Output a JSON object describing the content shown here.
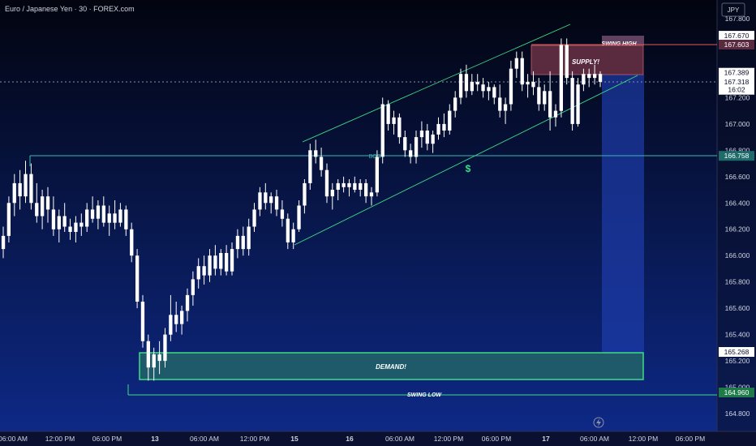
{
  "header": {
    "symbol_title": "Euro / Japanese Yen · 30 · FOREX.com",
    "currency_label": "JPY"
  },
  "footer": {
    "lightning_icon": "lightning-icon"
  },
  "chart_data": {
    "type": "candlestick",
    "title": "Euro / Japanese Yen · 30 · FOREX.com",
    "currency": "JPY",
    "ylim": [
      164.72,
      167.86
    ],
    "y_ticks": [
      164.8,
      165.0,
      165.2,
      165.4,
      165.6,
      165.8,
      166.0,
      166.2,
      166.4,
      166.6,
      166.8,
      167.0,
      167.2,
      167.4,
      167.6,
      167.8
    ],
    "x_tick_labels": [
      "06:00 AM",
      "12:00 PM",
      "06:00 PM",
      "13",
      "06:00 AM",
      "12:00 PM",
      "15",
      "16",
      "06:00 AM",
      "12:00 PM",
      "06:00 PM",
      "17",
      "06:00 AM",
      "12:00 PM",
      "06:00 PM"
    ],
    "price_labels": [
      {
        "value": "167.670",
        "price": 167.67,
        "style": "plain"
      },
      {
        "value": "167.603",
        "price": 167.603,
        "style": "swing-high"
      },
      {
        "value": "167.389",
        "price": 167.389,
        "style": "plain"
      },
      {
        "value": "167.318",
        "price": 167.318,
        "style": "current"
      },
      {
        "value": "16:02",
        "price": 167.26,
        "style": "plain"
      },
      {
        "value": "166.758",
        "price": 166.758,
        "style": "bos"
      },
      {
        "value": "165.268",
        "price": 165.268,
        "style": "plain"
      },
      {
        "value": "164.960",
        "price": 164.96,
        "style": "swing-low"
      }
    ],
    "candles_ohlc": [
      [
        166.05,
        166.22,
        165.98,
        166.15
      ],
      [
        166.15,
        166.45,
        166.1,
        166.4
      ],
      [
        166.4,
        166.62,
        166.3,
        166.55
      ],
      [
        166.55,
        166.65,
        166.35,
        166.45
      ],
      [
        166.45,
        166.72,
        166.4,
        166.62
      ],
      [
        166.62,
        166.7,
        166.35,
        166.4
      ],
      [
        166.4,
        166.55,
        166.25,
        166.3
      ],
      [
        166.3,
        166.5,
        166.2,
        166.45
      ],
      [
        166.45,
        166.52,
        166.25,
        166.35
      ],
      [
        166.35,
        166.45,
        166.15,
        166.2
      ],
      [
        166.2,
        166.35,
        166.1,
        166.3
      ],
      [
        166.3,
        166.4,
        166.18,
        166.22
      ],
      [
        166.22,
        166.28,
        166.12,
        166.18
      ],
      [
        166.18,
        166.3,
        166.1,
        166.25
      ],
      [
        166.25,
        166.32,
        166.15,
        166.22
      ],
      [
        166.22,
        166.4,
        166.18,
        166.35
      ],
      [
        166.35,
        166.45,
        166.25,
        166.28
      ],
      [
        166.28,
        166.42,
        166.2,
        166.38
      ],
      [
        166.38,
        166.45,
        166.22,
        166.25
      ],
      [
        166.25,
        166.38,
        166.15,
        166.32
      ],
      [
        166.32,
        166.42,
        166.2,
        166.25
      ],
      [
        166.25,
        166.4,
        166.22,
        166.35
      ],
      [
        166.35,
        166.38,
        166.15,
        166.2
      ],
      [
        166.2,
        166.25,
        165.95,
        166.0
      ],
      [
        166.0,
        166.05,
        165.6,
        165.65
      ],
      [
        165.65,
        165.7,
        165.3,
        165.35
      ],
      [
        165.35,
        165.4,
        165.05,
        165.15
      ],
      [
        165.15,
        165.3,
        165.05,
        165.25
      ],
      [
        165.25,
        165.35,
        165.1,
        165.2
      ],
      [
        165.2,
        165.45,
        165.15,
        165.4
      ],
      [
        165.4,
        165.7,
        165.35,
        165.55
      ],
      [
        165.55,
        165.65,
        165.42,
        165.48
      ],
      [
        165.48,
        165.62,
        165.4,
        165.58
      ],
      [
        165.58,
        165.75,
        165.5,
        165.7
      ],
      [
        165.7,
        165.88,
        165.62,
        165.82
      ],
      [
        165.82,
        165.98,
        165.75,
        165.92
      ],
      [
        165.92,
        166.0,
        165.78,
        165.85
      ],
      [
        165.85,
        166.05,
        165.8,
        166.0
      ],
      [
        166.0,
        166.08,
        165.85,
        165.9
      ],
      [
        165.9,
        166.05,
        165.85,
        166.02
      ],
      [
        166.02,
        166.08,
        165.85,
        165.88
      ],
      [
        165.88,
        166.1,
        165.85,
        166.05
      ],
      [
        166.05,
        166.2,
        165.98,
        166.15
      ],
      [
        166.15,
        166.22,
        166.0,
        166.05
      ],
      [
        166.05,
        166.28,
        166.0,
        166.22
      ],
      [
        166.22,
        166.4,
        166.18,
        166.35
      ],
      [
        166.35,
        166.52,
        166.3,
        166.48
      ],
      [
        166.48,
        166.55,
        166.35,
        166.4
      ],
      [
        166.4,
        166.48,
        166.32,
        166.45
      ],
      [
        166.45,
        166.5,
        166.3,
        166.35
      ],
      [
        166.35,
        166.42,
        166.22,
        166.28
      ],
      [
        166.28,
        166.32,
        166.05,
        166.1
      ],
      [
        166.1,
        166.25,
        166.05,
        166.2
      ],
      [
        166.2,
        166.42,
        166.18,
        166.38
      ],
      [
        166.38,
        166.58,
        166.32,
        166.55
      ],
      [
        166.55,
        166.85,
        166.5,
        166.8
      ],
      [
        166.8,
        166.88,
        166.7,
        166.75
      ],
      [
        166.75,
        166.82,
        166.6,
        166.65
      ],
      [
        166.65,
        166.7,
        166.4,
        166.45
      ],
      [
        166.45,
        166.55,
        166.35,
        166.5
      ],
      [
        166.5,
        166.58,
        166.42,
        166.55
      ],
      [
        166.55,
        166.6,
        166.48,
        166.52
      ],
      [
        166.52,
        166.58,
        166.45,
        166.55
      ],
      [
        166.55,
        166.6,
        166.48,
        166.5
      ],
      [
        166.5,
        166.58,
        166.45,
        166.55
      ],
      [
        166.55,
        166.58,
        166.4,
        166.45
      ],
      [
        166.45,
        166.52,
        166.38,
        166.48
      ],
      [
        166.48,
        166.8,
        166.45,
        166.75
      ],
      [
        166.75,
        167.2,
        166.7,
        167.15
      ],
      [
        167.15,
        167.18,
        166.95,
        167.0
      ],
      [
        167.0,
        167.1,
        166.92,
        167.05
      ],
      [
        167.05,
        167.08,
        166.85,
        166.9
      ],
      [
        166.9,
        166.95,
        166.75,
        166.8
      ],
      [
        166.8,
        166.85,
        166.7,
        166.75
      ],
      [
        166.75,
        166.95,
        166.7,
        166.9
      ],
      [
        166.9,
        167.02,
        166.82,
        166.95
      ],
      [
        166.95,
        167.0,
        166.8,
        166.85
      ],
      [
        166.85,
        166.95,
        166.78,
        166.92
      ],
      [
        166.92,
        167.05,
        166.88,
        167.0
      ],
      [
        167.0,
        167.08,
        166.9,
        166.95
      ],
      [
        166.95,
        167.15,
        166.92,
        167.1
      ],
      [
        167.1,
        167.25,
        167.05,
        167.2
      ],
      [
        167.2,
        167.42,
        167.15,
        167.38
      ],
      [
        167.38,
        167.45,
        167.2,
        167.25
      ],
      [
        167.25,
        167.38,
        167.22,
        167.32
      ],
      [
        167.32,
        167.38,
        167.25,
        167.3
      ],
      [
        167.3,
        167.35,
        167.2,
        167.25
      ],
      [
        167.25,
        167.32,
        167.18,
        167.28
      ],
      [
        167.28,
        167.3,
        167.15,
        167.2
      ],
      [
        167.2,
        167.3,
        167.05,
        167.1
      ],
      [
        167.1,
        167.2,
        167.0,
        167.15
      ],
      [
        167.15,
        167.48,
        167.1,
        167.42
      ],
      [
        167.42,
        167.55,
        167.35,
        167.5
      ],
      [
        167.5,
        167.55,
        167.25,
        167.3
      ],
      [
        167.3,
        167.38,
        167.2,
        167.32
      ],
      [
        167.32,
        167.4,
        167.22,
        167.28
      ],
      [
        167.28,
        167.35,
        167.1,
        167.15
      ],
      [
        167.15,
        167.3,
        167.1,
        167.25
      ],
      [
        167.25,
        167.4,
        166.95,
        167.05
      ],
      [
        167.05,
        167.15,
        166.98,
        167.1
      ],
      [
        167.1,
        167.65,
        167.05,
        167.6
      ],
      [
        167.6,
        167.65,
        167.3,
        167.35
      ],
      [
        167.35,
        167.4,
        166.95,
        167.0
      ],
      [
        167.0,
        167.35,
        166.98,
        167.3
      ],
      [
        167.3,
        167.42,
        167.25,
        167.38
      ],
      [
        167.38,
        167.42,
        167.28,
        167.35
      ],
      [
        167.35,
        167.45,
        167.3,
        167.38
      ],
      [
        167.38,
        167.4,
        167.28,
        167.32
      ]
    ]
  },
  "annotations": {
    "swing_high": "SWING HIGH",
    "supply": "SUPPLY!",
    "demand": "DEMAND!",
    "swing_low": "SWING LOW",
    "bos": "BOS",
    "dollar_sign": "$"
  },
  "colors": {
    "background_top": "#02040f",
    "background_bottom": "#0e2a8a",
    "candle": "#ffffff",
    "channel": "#3ddc84",
    "demand_border": "#3ddc84",
    "demand_fill": "#1f5a6a",
    "supply_fill": "#5a2a3e",
    "swing_high_line": "#e05a5a",
    "bos_line": "#3fb8b0",
    "swing_low_line": "#3ddc84",
    "target_zone": "#1f3fb0",
    "axis_text": "#d0d4e0"
  }
}
